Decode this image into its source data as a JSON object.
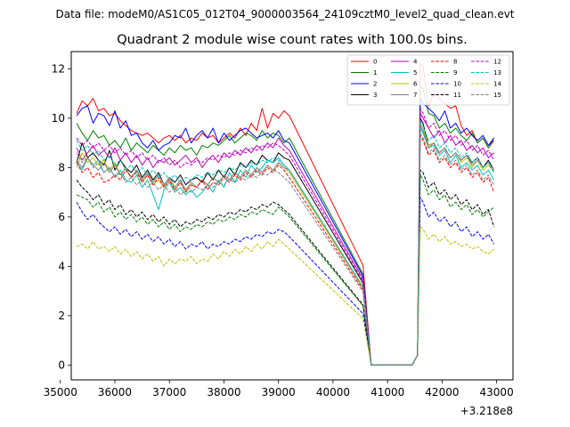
{
  "suptitle": "Data file: modeM0/AS1C05_012T04_9000003564_24109cztM0_level2_quad_clean.evt",
  "chart_data": {
    "type": "line",
    "title": "Quadrant 2 module wise count rates with 100.0s bins.",
    "x_offset_label": "+3.218e8",
    "xlim": [
      35200,
      43300
    ],
    "ylim": [
      -0.6,
      12.7
    ],
    "xticks": [
      35000,
      36000,
      37000,
      38000,
      39000,
      40000,
      41000,
      42000,
      43000
    ],
    "xtick_labels": [
      "35000",
      "36000",
      "37000",
      "38000",
      "39000",
      "40000",
      "41000",
      "42000",
      "43000"
    ],
    "yticks": [
      0,
      2,
      4,
      6,
      8,
      10,
      12
    ],
    "ytick_labels": [
      "0",
      "2",
      "4",
      "6",
      "8",
      "10",
      "12"
    ],
    "legend_position": "top-right",
    "gap": {
      "start": 40550,
      "zero_start": 40700,
      "zero_end": 41450,
      "end": 41600
    },
    "x_start": 35300,
    "x_end": 42950,
    "x_step": 100,
    "series": [
      {
        "name": "0",
        "color": "#ff0000",
        "dash": false,
        "pre": [
          10.2,
          10.7,
          10.5,
          10.8,
          10.3,
          10.4,
          10.1,
          10.2,
          9.9,
          9.7,
          9.5,
          9.4,
          9.3,
          9.4,
          9.2,
          9.0,
          9.2,
          9.3,
          9.1,
          9.3,
          9.0,
          9.2,
          9.1,
          9.4,
          9.2,
          9.3,
          9.0,
          9.2,
          9.4,
          9.2,
          9.6,
          9.3,
          9.8,
          9.5,
          10.4,
          9.6,
          10.2,
          10.0,
          10.3,
          10.1
        ],
        "post_end": 12.2,
        "post": [
          12.1,
          10.5,
          11.0,
          10.8,
          10.6,
          10.4,
          10.5,
          9.7,
          9.3,
          9.5,
          9.0,
          9.2,
          8.8,
          9.1
        ]
      },
      {
        "name": "1",
        "color": "#008000",
        "dash": false,
        "pre": [
          9.8,
          9.4,
          9.1,
          9.5,
          9.2,
          9.3,
          8.9,
          9.1,
          8.8,
          9.2,
          8.7,
          9.0,
          8.8,
          8.6,
          8.9,
          8.7,
          8.5,
          8.8,
          8.6,
          8.9,
          8.7,
          8.8,
          8.5,
          8.9,
          8.8,
          9.0,
          8.9,
          9.1,
          9.3,
          9.0,
          9.2,
          9.4,
          9.3,
          9.1,
          9.5,
          9.2,
          9.4,
          9.3,
          9.0,
          9.2
        ],
        "post_end": 11.3,
        "post": [
          11.2,
          10.2,
          10.1,
          9.6,
          9.8,
          9.4,
          9.6,
          9.3,
          9.1,
          9.4,
          9.0,
          9.2,
          8.8,
          9.2
        ]
      },
      {
        "name": "2",
        "color": "#0000ff",
        "dash": false,
        "pre": [
          10.1,
          10.4,
          10.5,
          9.8,
          10.2,
          10.1,
          9.7,
          10.3,
          9.6,
          9.9,
          9.3,
          9.4,
          9.0,
          8.8,
          9.1,
          8.7,
          8.9,
          9.0,
          9.3,
          9.2,
          9.6,
          9.0,
          9.3,
          9.5,
          9.2,
          9.6,
          9.0,
          9.4,
          9.1,
          9.3,
          9.5,
          9.6,
          9.4,
          9.2,
          9.3,
          9.4,
          9.2,
          9.5,
          9.1,
          9.0
        ],
        "post_end": 10.8,
        "post": [
          10.6,
          10.4,
          10.2,
          9.9,
          10.3,
          9.6,
          9.8,
          9.4,
          9.6,
          9.3,
          9.1,
          9.3,
          8.9,
          9.2
        ]
      },
      {
        "name": "3",
        "color": "#000000",
        "dash": false,
        "pre": [
          8.2,
          9.0,
          8.4,
          8.6,
          8.3,
          8.1,
          8.7,
          7.9,
          8.3,
          8.0,
          7.8,
          8.1,
          7.6,
          7.9,
          7.5,
          7.8,
          7.3,
          7.6,
          7.4,
          7.7,
          7.3,
          7.5,
          7.6,
          7.4,
          7.8,
          7.5,
          7.9,
          7.6,
          8.0,
          7.7,
          8.2,
          8.0,
          8.3,
          8.1,
          8.5,
          8.3,
          8.2,
          8.6,
          8.4,
          8.3
        ],
        "post_end": 10.0,
        "post": [
          9.8,
          8.9,
          9.0,
          8.6,
          8.8,
          8.4,
          8.6,
          8.3,
          8.5,
          8.2,
          8.4,
          8.0,
          8.3,
          7.9
        ]
      },
      {
        "name": "4",
        "color": "#bf00bf",
        "dash": false,
        "pre": [
          8.8,
          8.3,
          8.6,
          8.9,
          8.5,
          8.7,
          8.4,
          8.8,
          8.3,
          8.6,
          8.2,
          8.5,
          8.1,
          8.4,
          8.0,
          8.3,
          8.2,
          8.4,
          8.1,
          8.3,
          8.5,
          8.2,
          8.4,
          8.0,
          8.3,
          8.5,
          8.2,
          8.6,
          8.4,
          8.7,
          8.5,
          8.8,
          8.6,
          8.9,
          8.7,
          9.0,
          8.8,
          9.2,
          8.9,
          8.7
        ],
        "post_end": 10.2,
        "post": [
          10.0,
          9.6,
          9.2,
          9.5,
          9.0,
          9.3,
          8.9,
          9.1,
          8.7,
          8.9,
          8.6,
          8.8,
          8.4,
          8.6
        ]
      },
      {
        "name": "5",
        "color": "#00bfbf",
        "dash": false,
        "pre": [
          8.2,
          7.9,
          8.4,
          8.1,
          8.3,
          7.8,
          8.0,
          7.6,
          7.9,
          7.5,
          7.4,
          7.7,
          7.2,
          7.5,
          6.9,
          6.3,
          7.1,
          7.4,
          7.0,
          7.2,
          6.9,
          7.1,
          6.8,
          7.0,
          7.3,
          7.0,
          7.5,
          7.2,
          7.8,
          7.4,
          7.9,
          7.6,
          8.1,
          7.8,
          8.0,
          8.3,
          8.2,
          8.4,
          8.1,
          7.9
        ],
        "post_end": 9.6,
        "post": [
          9.4,
          8.8,
          8.9,
          8.5,
          8.7,
          8.2,
          8.5,
          8.0,
          8.2,
          7.9,
          8.1,
          7.7,
          7.9,
          7.5
        ]
      },
      {
        "name": "6",
        "color": "#bfbf00",
        "dash": false,
        "pre": [
          8.0,
          8.6,
          8.2,
          8.4,
          8.1,
          8.3,
          7.9,
          8.2,
          7.7,
          8.0,
          7.6,
          7.9,
          7.4,
          7.7,
          7.3,
          7.5,
          7.2,
          7.5,
          7.1,
          7.4,
          7.0,
          7.3,
          7.2,
          7.5,
          7.3,
          7.6,
          7.4,
          7.7,
          7.5,
          7.8,
          7.6,
          7.9,
          7.7,
          8.0,
          7.8,
          8.1,
          7.9,
          8.2,
          8.0,
          7.8
        ],
        "post_end": 9.8,
        "post": [
          9.6,
          8.9,
          9.0,
          8.6,
          8.8,
          8.4,
          8.6,
          8.2,
          8.4,
          8.0,
          8.3,
          7.9,
          8.1,
          7.8
        ]
      },
      {
        "name": "7",
        "color": "#808080",
        "dash": false,
        "pre": [
          8.3,
          8.0,
          8.4,
          8.1,
          7.9,
          8.2,
          7.8,
          8.1,
          7.7,
          8.0,
          7.6,
          7.9,
          7.5,
          7.8,
          7.4,
          7.7,
          7.3,
          7.6,
          7.2,
          7.5,
          7.1,
          7.4,
          7.2,
          7.5,
          7.3,
          7.6,
          7.4,
          7.7,
          7.5,
          7.8,
          7.6,
          7.9,
          7.7,
          8.0,
          7.8,
          8.1,
          7.9,
          8.2,
          8.0,
          7.9
        ],
        "post_end": 9.7,
        "post": [
          9.5,
          8.8,
          9.0,
          8.6,
          8.8,
          8.4,
          8.6,
          8.3,
          8.5,
          8.1,
          8.3,
          8.0,
          8.2,
          7.9
        ]
      },
      {
        "name": "8",
        "color": "#ff0000",
        "dash": true,
        "pre": [
          8.2,
          7.8,
          8.0,
          7.6,
          7.8,
          7.4,
          7.5,
          7.7,
          7.5,
          7.9,
          7.6,
          7.8,
          7.4,
          7.7,
          7.3,
          7.6,
          7.2,
          7.5,
          7.1,
          7.4,
          7.0,
          7.3,
          7.2,
          7.5,
          7.1,
          7.4,
          7.3,
          7.6,
          7.4,
          7.7,
          7.5,
          7.8,
          7.6,
          7.9,
          7.7,
          8.0,
          7.8,
          8.1,
          7.9,
          7.6
        ],
        "post_end": 9.3,
        "post": [
          9.1,
          8.5,
          8.7,
          8.2,
          8.4,
          8.0,
          8.2,
          7.8,
          8.0,
          7.6,
          7.8,
          7.4,
          7.6,
          7.0
        ]
      },
      {
        "name": "9",
        "color": "#008000",
        "dash": true,
        "pre": [
          6.9,
          6.8,
          6.7,
          6.4,
          6.6,
          6.2,
          6.4,
          6.0,
          6.2,
          5.9,
          6.1,
          5.8,
          6.0,
          5.7,
          5.9,
          5.6,
          5.8,
          5.5,
          5.7,
          5.4,
          5.6,
          5.5,
          5.7,
          5.6,
          5.8,
          5.7,
          5.9,
          5.8,
          6.0,
          5.9,
          6.1,
          6.0,
          6.2,
          6.1,
          6.3,
          6.2,
          6.1,
          6.4,
          6.2,
          6.0
        ],
        "post_end": 7.7,
        "post": [
          7.5,
          6.9,
          7.1,
          6.7,
          6.9,
          6.4,
          6.6,
          6.3,
          6.5,
          6.1,
          6.3,
          6.0,
          6.2,
          6.4
        ]
      },
      {
        "name": "10",
        "color": "#0000ff",
        "dash": true,
        "pre": [
          6.6,
          6.2,
          5.9,
          6.1,
          5.8,
          5.6,
          5.4,
          5.6,
          5.3,
          5.5,
          5.2,
          5.4,
          5.1,
          5.3,
          5.0,
          5.2,
          4.9,
          5.1,
          4.8,
          5.0,
          4.7,
          4.9,
          4.8,
          5.0,
          4.7,
          4.9,
          4.8,
          5.0,
          4.9,
          5.1,
          5.0,
          5.2,
          5.1,
          5.3,
          5.2,
          5.4,
          5.3,
          5.5,
          5.4,
          5.2
        ],
        "post_end": 6.8,
        "post": [
          6.6,
          6.0,
          6.2,
          5.8,
          6.0,
          5.6,
          5.8,
          5.4,
          5.6,
          5.2,
          5.4,
          5.1,
          5.3,
          4.9
        ]
      },
      {
        "name": "11",
        "color": "#000000",
        "dash": true,
        "pre": [
          7.5,
          7.2,
          7.0,
          6.7,
          6.9,
          6.5,
          6.7,
          6.3,
          6.5,
          6.1,
          6.3,
          6.0,
          6.2,
          5.9,
          6.1,
          5.8,
          6.0,
          5.7,
          5.9,
          5.6,
          5.8,
          5.7,
          5.9,
          5.8,
          6.0,
          5.9,
          6.1,
          6.0,
          6.2,
          6.1,
          6.3,
          6.2,
          6.4,
          6.3,
          6.5,
          6.4,
          6.6,
          6.5,
          6.3,
          6.1
        ],
        "post_end": 7.9,
        "post": [
          7.8,
          7.2,
          7.4,
          6.9,
          7.1,
          6.7,
          6.9,
          6.5,
          6.7,
          6.3,
          6.5,
          6.1,
          6.3,
          5.6
        ]
      },
      {
        "name": "12",
        "color": "#bf00bf",
        "dash": true,
        "pre": [
          9.2,
          8.9,
          9.1,
          8.8,
          9.0,
          8.7,
          8.9,
          8.6,
          8.8,
          8.5,
          8.7,
          8.4,
          8.6,
          8.3,
          8.5,
          8.2,
          8.4,
          8.1,
          8.3,
          8.0,
          8.2,
          8.1,
          8.3,
          8.2,
          8.4,
          8.3,
          8.5,
          8.4,
          8.6,
          8.5,
          8.7,
          8.6,
          8.8,
          8.7,
          8.9,
          8.8,
          9.0,
          8.9,
          8.7,
          8.5
        ],
        "post_end": 10.4,
        "post": [
          10.2,
          9.6,
          9.8,
          9.3,
          9.5,
          9.1,
          9.3,
          8.9,
          9.1,
          8.7,
          8.9,
          8.5,
          8.7,
          8.3
        ]
      },
      {
        "name": "13",
        "color": "#00bfbf",
        "dash": true,
        "pre": [
          9.1,
          8.7,
          8.9,
          8.5,
          8.7,
          8.3,
          8.5,
          8.1,
          8.3,
          7.9,
          8.1,
          7.8,
          8.0,
          7.7,
          7.9,
          7.6,
          7.8,
          7.5,
          7.7,
          7.4,
          7.6,
          7.5,
          7.7,
          7.6,
          7.8,
          7.7,
          7.9,
          7.8,
          8.0,
          7.9,
          8.1,
          8.0,
          8.2,
          8.1,
          8.3,
          8.2,
          8.4,
          8.3,
          8.1,
          7.9
        ],
        "post_end": 9.9,
        "post": [
          9.7,
          9.1,
          9.3,
          8.8,
          9.0,
          8.6,
          8.8,
          8.4,
          8.6,
          8.2,
          8.4,
          8.0,
          8.2,
          7.8
        ]
      },
      {
        "name": "14",
        "color": "#bfbf00",
        "dash": true,
        "pre": [
          4.8,
          4.9,
          4.7,
          5.0,
          4.7,
          4.8,
          4.6,
          4.8,
          4.5,
          4.7,
          4.4,
          4.6,
          4.3,
          4.5,
          4.2,
          4.4,
          4.0,
          4.3,
          4.1,
          4.3,
          4.2,
          4.4,
          4.1,
          4.3,
          4.2,
          4.5,
          4.3,
          4.6,
          4.4,
          4.7,
          4.5,
          4.8,
          4.6,
          4.9,
          4.7,
          5.0,
          4.8,
          5.1,
          4.9,
          4.7
        ],
        "post_end": 5.6,
        "post": [
          5.5,
          5.1,
          5.3,
          5.0,
          5.2,
          4.9,
          5.0,
          4.8,
          4.9,
          4.7,
          4.8,
          4.6,
          4.5,
          4.7
        ]
      },
      {
        "name": "15",
        "color": "#808080",
        "dash": true,
        "pre": [
          8.6,
          8.2,
          8.4,
          8.0,
          8.2,
          7.8,
          8.0,
          7.6,
          7.8,
          7.4,
          7.6,
          7.3,
          7.5,
          7.2,
          7.4,
          7.1,
          7.3,
          7.0,
          7.2,
          6.9,
          7.1,
          7.0,
          7.2,
          7.1,
          7.3,
          7.2,
          7.4,
          7.3,
          7.5,
          7.4,
          7.6,
          7.5,
          7.7,
          7.6,
          7.8,
          7.7,
          7.9,
          7.8,
          7.6,
          7.4
        ],
        "post_end": 9.4,
        "post": [
          9.2,
          8.6,
          8.8,
          8.3,
          8.5,
          8.1,
          8.3,
          7.9,
          8.1,
          7.7,
          7.9,
          7.5,
          7.7,
          7.3
        ]
      }
    ]
  }
}
